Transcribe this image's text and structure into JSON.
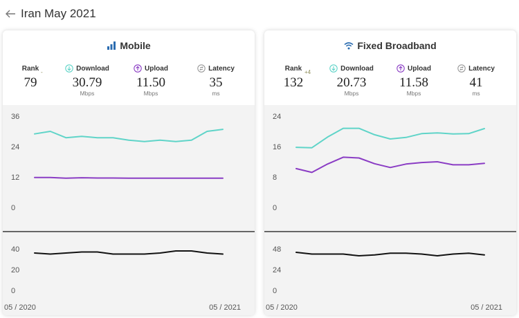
{
  "header": {
    "title": "Iran May 2021"
  },
  "colors": {
    "download": "#5fd4c8",
    "upload": "#8a3cc4",
    "latency": "#111111"
  },
  "cards": [
    {
      "id": "mobile",
      "title": "Mobile",
      "icon": "signal-bars-icon",
      "rank": {
        "label": "Rank",
        "value": "79",
        "delta": "-"
      },
      "download": {
        "label": "Download",
        "value": "30.79",
        "unit": "Mbps"
      },
      "upload": {
        "label": "Upload",
        "value": "11.50",
        "unit": "Mbps"
      },
      "latency": {
        "label": "Latency",
        "value": "35",
        "unit": "ms"
      },
      "x_start": "05 / 2020",
      "x_end": "05 / 2021"
    },
    {
      "id": "fixed",
      "title": "Fixed Broadband",
      "icon": "wifi-icon",
      "rank": {
        "label": "Rank",
        "value": "132",
        "delta": "+4"
      },
      "download": {
        "label": "Download",
        "value": "20.73",
        "unit": "Mbps"
      },
      "upload": {
        "label": "Upload",
        "value": "11.58",
        "unit": "Mbps"
      },
      "latency": {
        "label": "Latency",
        "value": "41",
        "unit": "ms"
      },
      "x_start": "05 / 2020",
      "x_end": "05 / 2021"
    }
  ],
  "chart_data": [
    {
      "type": "line",
      "title": "Mobile",
      "x": [
        "05/2020",
        "06/2020",
        "07/2020",
        "08/2020",
        "09/2020",
        "10/2020",
        "11/2020",
        "12/2020",
        "01/2021",
        "02/2021",
        "03/2021",
        "04/2021",
        "05/2021"
      ],
      "speed_axis": {
        "ylim": [
          0,
          36
        ],
        "ticks": [
          0,
          12,
          24,
          36
        ]
      },
      "latency_axis": {
        "ylim": [
          0,
          40
        ],
        "ticks": [
          0,
          20,
          40
        ]
      },
      "series": [
        {
          "name": "Download",
          "values": [
            29,
            30,
            27.5,
            28,
            27.5,
            27.5,
            26.5,
            26,
            26.5,
            26,
            26.5,
            30,
            30.79
          ]
        },
        {
          "name": "Upload",
          "values": [
            11.8,
            11.8,
            11.5,
            11.7,
            11.6,
            11.6,
            11.5,
            11.5,
            11.5,
            11.5,
            11.5,
            11.5,
            11.5
          ]
        },
        {
          "name": "Latency",
          "values": [
            36,
            35,
            36,
            37,
            37,
            35,
            35,
            35,
            36,
            38,
            38,
            36,
            35
          ]
        }
      ]
    },
    {
      "type": "line",
      "title": "Fixed Broadband",
      "x": [
        "05/2020",
        "06/2020",
        "07/2020",
        "08/2020",
        "09/2020",
        "10/2020",
        "11/2020",
        "12/2020",
        "01/2021",
        "02/2021",
        "03/2021",
        "04/2021",
        "05/2021"
      ],
      "speed_axis": {
        "ylim": [
          0,
          24
        ],
        "ticks": [
          0,
          8,
          16,
          24
        ]
      },
      "latency_axis": {
        "ylim": [
          0,
          48
        ],
        "ticks": [
          0,
          24,
          48
        ]
      },
      "series": [
        {
          "name": "Download",
          "values": [
            15.8,
            15.7,
            18.5,
            20.8,
            20.8,
            19.1,
            18,
            18.4,
            19.4,
            19.6,
            19.3,
            19.4,
            20.73
          ]
        },
        {
          "name": "Upload",
          "values": [
            10.2,
            9.2,
            11.4,
            13.2,
            13,
            11.5,
            10.5,
            11.4,
            11.8,
            12,
            11.2,
            11.2,
            11.58
          ]
        },
        {
          "name": "Latency",
          "values": [
            44,
            42,
            42,
            42,
            40,
            41,
            43,
            43,
            42,
            40,
            42,
            43,
            41
          ]
        }
      ]
    }
  ]
}
